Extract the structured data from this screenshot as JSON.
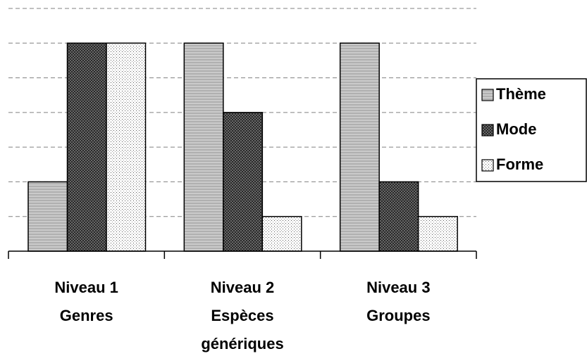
{
  "chart_data": {
    "type": "bar",
    "categories": [
      [
        "Niveau 1",
        "Genres"
      ],
      [
        "Niveau 2",
        "Espèces",
        "génériques"
      ],
      [
        "Niveau 3",
        "Groupes"
      ]
    ],
    "series": [
      {
        "name": "Thème",
        "color": "#d9d9d9",
        "values": [
          2,
          6,
          6
        ]
      },
      {
        "name": "Mode",
        "color": "#7f7f7f",
        "values": [
          6,
          4,
          2
        ]
      },
      {
        "name": "Forme",
        "color": "#ffffff",
        "values": [
          6,
          1,
          1
        ]
      }
    ],
    "ylim": [
      0,
      7
    ],
    "yticks": [
      1,
      2,
      3,
      4,
      5,
      6,
      7
    ],
    "grid": true,
    "legend": "right"
  }
}
